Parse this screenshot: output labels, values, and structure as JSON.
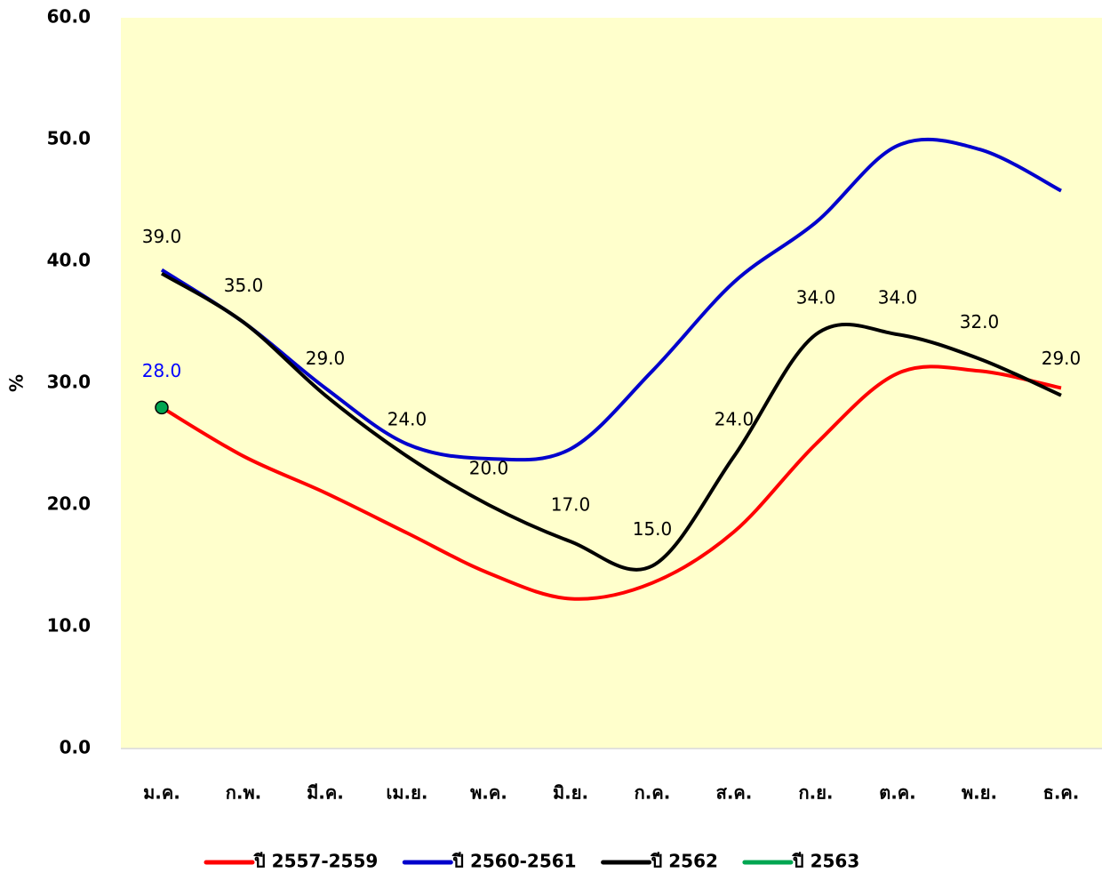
{
  "chart_data": {
    "type": "line",
    "y_label": "%",
    "categories": [
      "ม.ค.",
      "ก.พ.",
      "มี.ค.",
      "เม.ย.",
      "พ.ค.",
      "มิ.ย.",
      "ก.ค.",
      "ส.ค.",
      "ก.ย.",
      "ต.ค.",
      "พ.ย.",
      "ธ.ค."
    ],
    "series": [
      {
        "name": "ปี 2557-2559",
        "color": "#ff0000",
        "values": [
          28,
          24,
          21,
          17.7,
          14.4,
          12.3,
          13.6,
          17.8,
          25,
          30.8,
          31,
          29.6
        ]
      },
      {
        "name": "ปี 2560-2561",
        "color": "#0000cc",
        "values": [
          39.3,
          35,
          29.6,
          25,
          23.8,
          24.6,
          31,
          38.3,
          43.2,
          49.5,
          49.2,
          45.8
        ]
      },
      {
        "name": "ปี 2562",
        "color": "#000000",
        "values": [
          39,
          35,
          29,
          24,
          20,
          17,
          15,
          24,
          34,
          34,
          32,
          29
        ],
        "value_labels": [
          "39.0",
          "35.0",
          "29.0",
          "24.0",
          "20.0",
          "17.0",
          "15.0",
          "24.0",
          "34.0",
          "34.0",
          "32.0",
          "29.0"
        ],
        "label_color": "#000000"
      },
      {
        "name": "ปี 2563",
        "color": "#00a651",
        "values": [
          28,
          null,
          null,
          null,
          null,
          null,
          null,
          null,
          null,
          null,
          null,
          null
        ],
        "value_labels": [
          "28.0",
          null,
          null,
          null,
          null,
          null,
          null,
          null,
          null,
          null,
          null,
          null
        ],
        "label_color": "#0000ff"
      }
    ],
    "ylim": [
      0,
      60
    ],
    "yticks": [
      {
        "value": 0,
        "label": "0.0"
      },
      {
        "value": 10,
        "label": "10.0"
      },
      {
        "value": 20,
        "label": "20.0"
      },
      {
        "value": 30,
        "label": "30.0"
      },
      {
        "value": 40,
        "label": "40.0"
      },
      {
        "value": 50,
        "label": "50.0"
      },
      {
        "value": 60,
        "label": "60.0"
      }
    ],
    "plot_background": "#ffffcc",
    "legend": "bottom",
    "smooth": true
  }
}
